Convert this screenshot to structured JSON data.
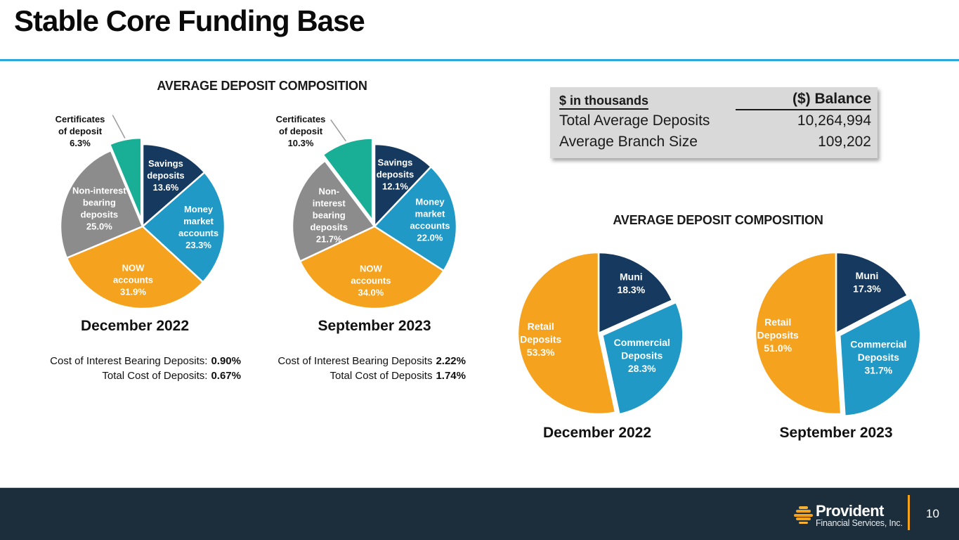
{
  "slide": {
    "title": "Stable Core Funding Base"
  },
  "colors": {
    "accent_rule": "#2BA9DC",
    "footer_bg": "#1C2D3B",
    "table_bg": "#D9D9D9",
    "logo_orange": "#F2A31B",
    "navy": "#16395F",
    "cyan": "#2099C7",
    "orange": "#F5A21F",
    "gray": "#8C8C8C",
    "teal": "#19AE96"
  },
  "left_section": {
    "heading": "AVERAGE DEPOSIT COMPOSITION",
    "pie1_outside_label": "Certificates\nof deposit\n6.3%",
    "pie2_outside_label": "Certificates\nof deposit\n10.3%",
    "pie1_costs": [
      {
        "label": "Cost of Interest Bearing Deposits:",
        "value": "0.90%"
      },
      {
        "label": "Total Cost of Deposits:",
        "value": "0.67%"
      }
    ],
    "pie2_costs": [
      {
        "label": "Cost of Interest Bearing Deposits",
        "value": "2.22%"
      },
      {
        "label": "Total Cost of Deposits",
        "value": "1.74%"
      }
    ]
  },
  "summary_table": {
    "units_label": "$ in thousands",
    "balance_header": "($) Balance",
    "rows": [
      {
        "label": "Total Average Deposits",
        "value": "10,264,994"
      },
      {
        "label": "Average Branch Size",
        "value": "109,202"
      }
    ]
  },
  "right_section": {
    "heading": "AVERAGE DEPOSIT COMPOSITION"
  },
  "footer": {
    "logo_name": "Provident",
    "logo_subtitle": "Financial Services, Inc.",
    "page_number": "10"
  },
  "chart_data": [
    {
      "type": "pie",
      "title": "December 2022",
      "r": 117,
      "label_font": 13,
      "line_height": 17,
      "slices": [
        {
          "label": "Savings deposits",
          "label_lines": [
            "Savings",
            "deposits"
          ],
          "value": 13.6,
          "pct": "13.6%",
          "color": "#16395F",
          "lr": 0.68
        },
        {
          "label": "Money market accounts",
          "label_lines": [
            "Money",
            "market",
            "accounts"
          ],
          "value": 23.3,
          "pct": "23.3%",
          "color": "#2099C7",
          "lr": 0.68
        },
        {
          "label": "NOW accounts",
          "label_lines": [
            "NOW",
            "accounts"
          ],
          "value": 31.9,
          "pct": "31.9%",
          "color": "#F5A21F",
          "lr": 0.66
        },
        {
          "label": "Non-interest bearing deposits",
          "label_lines": [
            "Non-interest",
            "bearing",
            "deposits"
          ],
          "value": 25.0,
          "pct": "25.0%",
          "color": "#8C8C8C",
          "lr": 0.57
        },
        {
          "label": "Certificates of deposit",
          "value": 6.3,
          "pct": "6.3%",
          "color": "#19AE96",
          "outside": true,
          "explode": 9
        }
      ]
    },
    {
      "type": "pie",
      "title": "September 2023",
      "r": 117,
      "label_font": 13,
      "line_height": 17,
      "slices": [
        {
          "label": "Savings deposits",
          "label_lines": [
            "Savings",
            "deposits"
          ],
          "value": 12.1,
          "pct": "12.1%",
          "color": "#16395F",
          "lr": 0.68
        },
        {
          "label": "Money market accounts",
          "label_lines": [
            "Money",
            "market",
            "accounts"
          ],
          "value": 22.0,
          "pct": "22.0%",
          "color": "#2099C7",
          "lr": 0.68
        },
        {
          "label": "NOW accounts",
          "label_lines": [
            "NOW",
            "accounts"
          ],
          "value": 34.0,
          "pct": "34.0%",
          "color": "#F5A21F",
          "lr": 0.66
        },
        {
          "label": "Non-interest bearing deposits",
          "label_lines": [
            "Non-",
            "interest",
            "bearing",
            "deposits"
          ],
          "value": 21.7,
          "pct": "21.7%",
          "color": "#8C8C8C",
          "lr": 0.57
        },
        {
          "label": "Certificates of deposit",
          "value": 10.3,
          "pct": "10.3%",
          "color": "#19AE96",
          "outside": true,
          "explode": 9
        }
      ]
    },
    {
      "type": "pie",
      "title": "December 2022",
      "r": 115,
      "label_font": 14,
      "line_height": 18.5,
      "slices": [
        {
          "label": "Muni",
          "label_lines": [
            "Muni"
          ],
          "value": 18.3,
          "pct": "18.3%",
          "color": "#16395F",
          "lr": 0.74
        },
        {
          "label": "Commercial Deposits",
          "label_lines": [
            "Commercial",
            "Deposits"
          ],
          "value": 28.3,
          "pct": "28.3%",
          "color": "#2099C7",
          "lr": 0.55,
          "explode": 6
        },
        {
          "label": "Retail Deposits",
          "label_lines": [
            "Retail",
            "Deposits"
          ],
          "value": 53.3,
          "pct": "53.3%",
          "color": "#F5A21F",
          "lr": 0.72
        }
      ]
    },
    {
      "type": "pie",
      "title": "September 2023",
      "r": 115,
      "label_font": 14,
      "line_height": 18.5,
      "slices": [
        {
          "label": "Muni",
          "label_lines": [
            "Muni"
          ],
          "value": 17.3,
          "pct": "17.3%",
          "color": "#16395F",
          "lr": 0.74
        },
        {
          "label": "Commercial Deposits",
          "label_lines": [
            "Commercial",
            "Deposits"
          ],
          "value": 31.7,
          "pct": "31.7%",
          "color": "#2099C7",
          "lr": 0.55,
          "explode": 6
        },
        {
          "label": "Retail Deposits",
          "label_lines": [
            "Retail",
            "Deposits"
          ],
          "value": 51.0,
          "pct": "51.0%",
          "color": "#F5A21F",
          "lr": 0.72
        }
      ]
    }
  ]
}
